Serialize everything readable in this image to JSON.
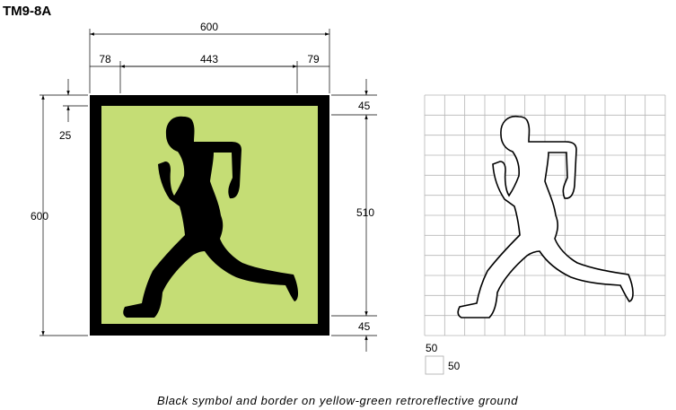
{
  "title": "TM9-8A",
  "dimensions": {
    "overall_width": "600",
    "left_offset": "78",
    "symbol_width": "443",
    "right_offset": "79",
    "overall_height": "600",
    "top_offset": "25",
    "border_top": "45",
    "symbol_height": "510",
    "border_bottom": "45"
  },
  "grid_legend": {
    "cell_width": "50",
    "cell_height": "50"
  },
  "caption": "Black symbol and border on yellow-green retroreflective ground",
  "colors": {
    "ground": "#c5dd75",
    "symbol": "#000000",
    "border": "#000000",
    "grid": "#b5b5b5"
  },
  "icons": {
    "sign_symbol": "running-man-icon",
    "outline_symbol": "running-man-outline-icon"
  }
}
